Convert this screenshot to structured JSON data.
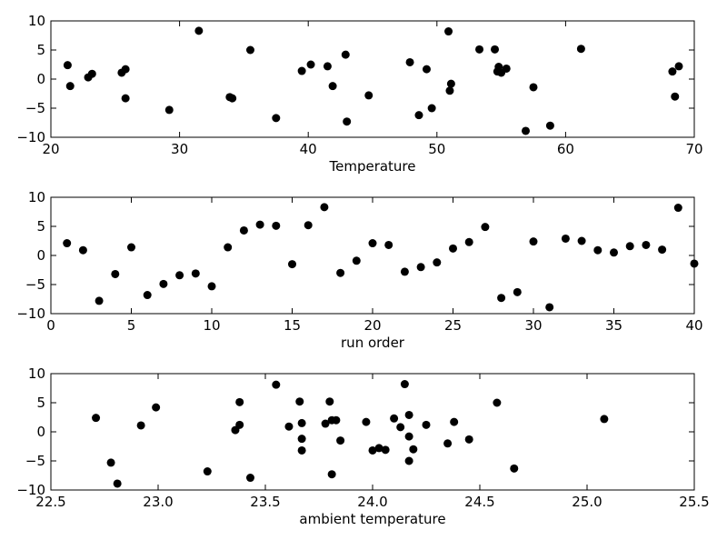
{
  "chart_data": [
    {
      "type": "scatter",
      "xlabel": "Temperature",
      "ylabel": "",
      "xlim": [
        20,
        70
      ],
      "ylim": [
        -10,
        10
      ],
      "xticks": [
        "20",
        "30",
        "40",
        "50",
        "60",
        "70"
      ],
      "yticks": [
        "10",
        "5",
        "0",
        "−5",
        "−10"
      ],
      "grid": false,
      "marker_color": "#000000",
      "points": [
        [
          21.3,
          2.4
        ],
        [
          21.5,
          -1.2
        ],
        [
          22.9,
          0.3
        ],
        [
          23.2,
          0.9
        ],
        [
          25.5,
          1.1
        ],
        [
          25.8,
          1.7
        ],
        [
          25.8,
          -3.3
        ],
        [
          29.2,
          -5.3
        ],
        [
          31.5,
          8.3
        ],
        [
          33.9,
          -3.1
        ],
        [
          34.1,
          -3.3
        ],
        [
          35.5,
          5.0
        ],
        [
          37.5,
          -6.7
        ],
        [
          39.5,
          1.4
        ],
        [
          40.2,
          2.5
        ],
        [
          41.5,
          2.2
        ],
        [
          41.9,
          -1.2
        ],
        [
          42.9,
          4.2
        ],
        [
          43.0,
          -7.3
        ],
        [
          44.7,
          -2.8
        ],
        [
          47.9,
          2.9
        ],
        [
          48.6,
          -6.2
        ],
        [
          49.2,
          1.7
        ],
        [
          49.6,
          -5.0
        ],
        [
          50.9,
          8.2
        ],
        [
          51.0,
          -2.0
        ],
        [
          51.1,
          -0.8
        ],
        [
          53.3,
          5.1
        ],
        [
          54.5,
          5.1
        ],
        [
          54.7,
          1.3
        ],
        [
          54.8,
          2.1
        ],
        [
          55.0,
          1.1
        ],
        [
          55.4,
          1.8
        ],
        [
          56.9,
          -8.9
        ],
        [
          57.5,
          -1.4
        ],
        [
          58.8,
          -8.0
        ],
        [
          61.2,
          5.2
        ],
        [
          68.3,
          1.3
        ],
        [
          68.5,
          -3.0
        ],
        [
          68.8,
          2.2
        ]
      ]
    },
    {
      "type": "scatter",
      "xlabel": "run order",
      "ylabel": "",
      "xlim": [
        0,
        40
      ],
      "ylim": [
        -10,
        10
      ],
      "xticks": [
        "0",
        "5",
        "10",
        "15",
        "20",
        "25",
        "30",
        "35",
        "40"
      ],
      "yticks": [
        "10",
        "5",
        "0",
        "−5",
        "−10"
      ],
      "grid": false,
      "marker_color": "#000000",
      "points": [
        [
          1,
          2.1
        ],
        [
          2,
          0.9
        ],
        [
          3,
          -7.8
        ],
        [
          4,
          -3.2
        ],
        [
          5,
          1.4
        ],
        [
          6,
          -6.8
        ],
        [
          7,
          -4.9
        ],
        [
          8,
          -3.4
        ],
        [
          9,
          -3.1
        ],
        [
          10,
          -5.3
        ],
        [
          11,
          1.4
        ],
        [
          12,
          4.3
        ],
        [
          13,
          5.3
        ],
        [
          14,
          5.1
        ],
        [
          15,
          -1.5
        ],
        [
          16,
          5.2
        ],
        [
          17,
          8.3
        ],
        [
          18,
          -3.0
        ],
        [
          19,
          -0.9
        ],
        [
          20,
          2.1
        ],
        [
          21,
          1.8
        ],
        [
          22,
          -2.8
        ],
        [
          23,
          -2.0
        ],
        [
          24,
          -1.2
        ],
        [
          25,
          1.2
        ],
        [
          26,
          2.3
        ],
        [
          27,
          4.9
        ],
        [
          28,
          -7.3
        ],
        [
          29,
          -6.3
        ],
        [
          30,
          2.4
        ],
        [
          31,
          -8.9
        ],
        [
          32,
          2.9
        ],
        [
          33,
          2.5
        ],
        [
          34,
          0.9
        ],
        [
          35,
          0.5
        ],
        [
          36,
          1.6
        ],
        [
          37,
          1.8
        ],
        [
          38,
          1.0
        ],
        [
          39,
          8.2
        ],
        [
          40,
          -1.4
        ]
      ]
    },
    {
      "type": "scatter",
      "xlabel": "ambient temperature",
      "ylabel": "",
      "xlim": [
        22.5,
        25.5
      ],
      "ylim": [
        -10,
        10
      ],
      "xticks": [
        "22.5",
        "23.0",
        "23.5",
        "24.0",
        "24.5",
        "25.0",
        "25.5"
      ],
      "yticks": [
        "10",
        "5",
        "0",
        "−5",
        "−10"
      ],
      "grid": false,
      "marker_color": "#000000",
      "points": [
        [
          22.71,
          2.4
        ],
        [
          22.78,
          -5.3
        ],
        [
          22.81,
          -8.9
        ],
        [
          22.92,
          1.1
        ],
        [
          22.99,
          4.2
        ],
        [
          23.23,
          -6.8
        ],
        [
          23.36,
          0.3
        ],
        [
          23.38,
          5.1
        ],
        [
          23.38,
          1.2
        ],
        [
          23.43,
          -7.9
        ],
        [
          23.55,
          8.1
        ],
        [
          23.61,
          0.9
        ],
        [
          23.66,
          5.2
        ],
        [
          23.67,
          1.5
        ],
        [
          23.67,
          -1.2
        ],
        [
          23.67,
          -3.2
        ],
        [
          23.78,
          1.4
        ],
        [
          23.8,
          5.2
        ],
        [
          23.81,
          2.0
        ],
        [
          23.81,
          -7.3
        ],
        [
          23.83,
          2.0
        ],
        [
          23.85,
          -1.5
        ],
        [
          23.97,
          1.7
        ],
        [
          24.0,
          -3.2
        ],
        [
          24.03,
          -2.8
        ],
        [
          24.06,
          -3.1
        ],
        [
          24.1,
          2.3
        ],
        [
          24.13,
          0.8
        ],
        [
          24.15,
          8.2
        ],
        [
          24.17,
          -0.8
        ],
        [
          24.17,
          -5.0
        ],
        [
          24.17,
          2.9
        ],
        [
          24.19,
          -3.0
        ],
        [
          24.25,
          1.2
        ],
        [
          24.35,
          -2.0
        ],
        [
          24.38,
          1.7
        ],
        [
          24.45,
          -1.3
        ],
        [
          24.58,
          5.0
        ],
        [
          24.66,
          -6.3
        ],
        [
          25.08,
          2.2
        ]
      ]
    }
  ]
}
